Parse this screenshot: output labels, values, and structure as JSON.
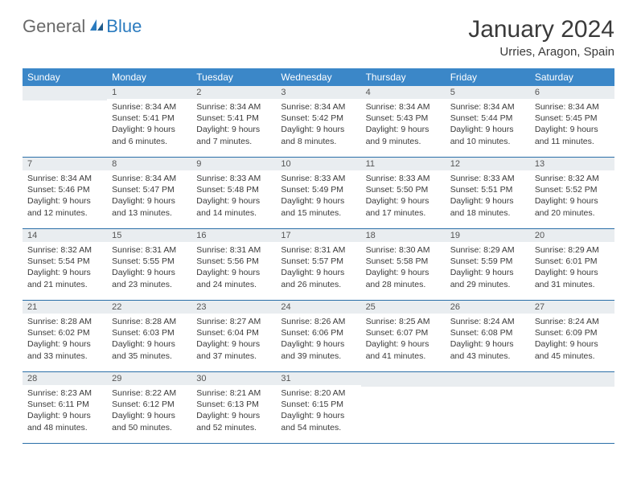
{
  "brand": {
    "word1": "General",
    "word2": "Blue"
  },
  "title": "January 2024",
  "location": "Urries, Aragon, Spain",
  "colors": {
    "header_bg": "#3b87c8",
    "header_text": "#ffffff",
    "daynum_bg": "#e9edf0",
    "border": "#2b6fa8",
    "brand_gray": "#6a6a6a",
    "brand_blue": "#2b7bbf"
  },
  "weekdays": [
    "Sunday",
    "Monday",
    "Tuesday",
    "Wednesday",
    "Thursday",
    "Friday",
    "Saturday"
  ],
  "first_weekday_index": 1,
  "days": [
    {
      "n": 1,
      "sunrise": "8:34 AM",
      "sunset": "5:41 PM",
      "daylight": "9 hours and 6 minutes."
    },
    {
      "n": 2,
      "sunrise": "8:34 AM",
      "sunset": "5:41 PM",
      "daylight": "9 hours and 7 minutes."
    },
    {
      "n": 3,
      "sunrise": "8:34 AM",
      "sunset": "5:42 PM",
      "daylight": "9 hours and 8 minutes."
    },
    {
      "n": 4,
      "sunrise": "8:34 AM",
      "sunset": "5:43 PM",
      "daylight": "9 hours and 9 minutes."
    },
    {
      "n": 5,
      "sunrise": "8:34 AM",
      "sunset": "5:44 PM",
      "daylight": "9 hours and 10 minutes."
    },
    {
      "n": 6,
      "sunrise": "8:34 AM",
      "sunset": "5:45 PM",
      "daylight": "9 hours and 11 minutes."
    },
    {
      "n": 7,
      "sunrise": "8:34 AM",
      "sunset": "5:46 PM",
      "daylight": "9 hours and 12 minutes."
    },
    {
      "n": 8,
      "sunrise": "8:34 AM",
      "sunset": "5:47 PM",
      "daylight": "9 hours and 13 minutes."
    },
    {
      "n": 9,
      "sunrise": "8:33 AM",
      "sunset": "5:48 PM",
      "daylight": "9 hours and 14 minutes."
    },
    {
      "n": 10,
      "sunrise": "8:33 AM",
      "sunset": "5:49 PM",
      "daylight": "9 hours and 15 minutes."
    },
    {
      "n": 11,
      "sunrise": "8:33 AM",
      "sunset": "5:50 PM",
      "daylight": "9 hours and 17 minutes."
    },
    {
      "n": 12,
      "sunrise": "8:33 AM",
      "sunset": "5:51 PM",
      "daylight": "9 hours and 18 minutes."
    },
    {
      "n": 13,
      "sunrise": "8:32 AM",
      "sunset": "5:52 PM",
      "daylight": "9 hours and 20 minutes."
    },
    {
      "n": 14,
      "sunrise": "8:32 AM",
      "sunset": "5:54 PM",
      "daylight": "9 hours and 21 minutes."
    },
    {
      "n": 15,
      "sunrise": "8:31 AM",
      "sunset": "5:55 PM",
      "daylight": "9 hours and 23 minutes."
    },
    {
      "n": 16,
      "sunrise": "8:31 AM",
      "sunset": "5:56 PM",
      "daylight": "9 hours and 24 minutes."
    },
    {
      "n": 17,
      "sunrise": "8:31 AM",
      "sunset": "5:57 PM",
      "daylight": "9 hours and 26 minutes."
    },
    {
      "n": 18,
      "sunrise": "8:30 AM",
      "sunset": "5:58 PM",
      "daylight": "9 hours and 28 minutes."
    },
    {
      "n": 19,
      "sunrise": "8:29 AM",
      "sunset": "5:59 PM",
      "daylight": "9 hours and 29 minutes."
    },
    {
      "n": 20,
      "sunrise": "8:29 AM",
      "sunset": "6:01 PM",
      "daylight": "9 hours and 31 minutes."
    },
    {
      "n": 21,
      "sunrise": "8:28 AM",
      "sunset": "6:02 PM",
      "daylight": "9 hours and 33 minutes."
    },
    {
      "n": 22,
      "sunrise": "8:28 AM",
      "sunset": "6:03 PM",
      "daylight": "9 hours and 35 minutes."
    },
    {
      "n": 23,
      "sunrise": "8:27 AM",
      "sunset": "6:04 PM",
      "daylight": "9 hours and 37 minutes."
    },
    {
      "n": 24,
      "sunrise": "8:26 AM",
      "sunset": "6:06 PM",
      "daylight": "9 hours and 39 minutes."
    },
    {
      "n": 25,
      "sunrise": "8:25 AM",
      "sunset": "6:07 PM",
      "daylight": "9 hours and 41 minutes."
    },
    {
      "n": 26,
      "sunrise": "8:24 AM",
      "sunset": "6:08 PM",
      "daylight": "9 hours and 43 minutes."
    },
    {
      "n": 27,
      "sunrise": "8:24 AM",
      "sunset": "6:09 PM",
      "daylight": "9 hours and 45 minutes."
    },
    {
      "n": 28,
      "sunrise": "8:23 AM",
      "sunset": "6:11 PM",
      "daylight": "9 hours and 48 minutes."
    },
    {
      "n": 29,
      "sunrise": "8:22 AM",
      "sunset": "6:12 PM",
      "daylight": "9 hours and 50 minutes."
    },
    {
      "n": 30,
      "sunrise": "8:21 AM",
      "sunset": "6:13 PM",
      "daylight": "9 hours and 52 minutes."
    },
    {
      "n": 31,
      "sunrise": "8:20 AM",
      "sunset": "6:15 PM",
      "daylight": "9 hours and 54 minutes."
    }
  ],
  "labels": {
    "sunrise": "Sunrise:",
    "sunset": "Sunset:",
    "daylight": "Daylight:"
  }
}
